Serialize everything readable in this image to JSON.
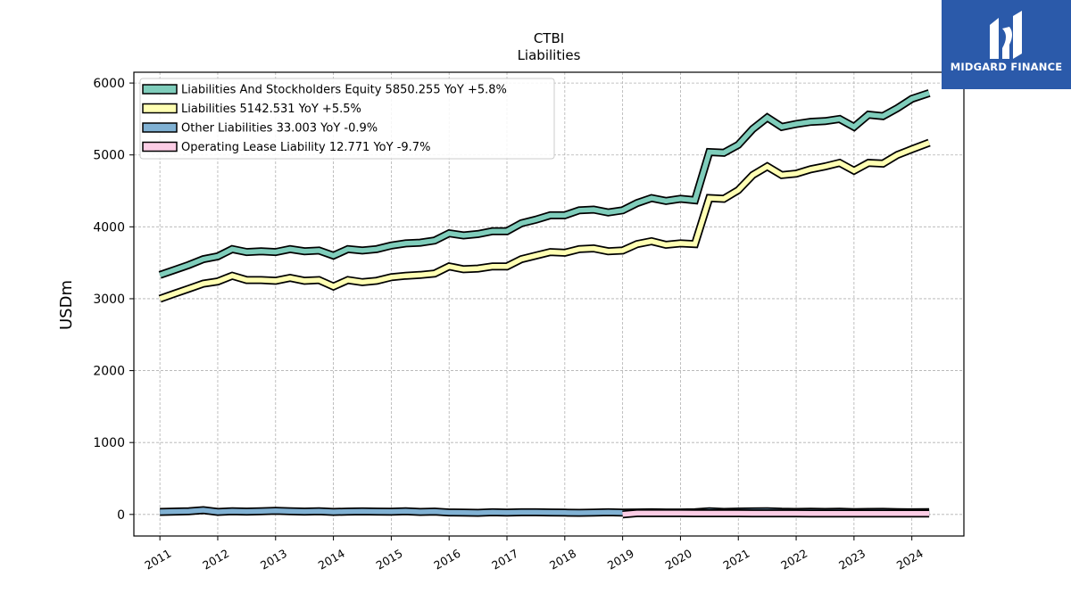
{
  "chart_data": {
    "type": "line",
    "title": "CTBI",
    "subtitle": "Liabilities",
    "xlabel": "",
    "ylabel": "USDm",
    "xlim": [
      2010.55,
      2024.9
    ],
    "ylim": [
      -300,
      6150
    ],
    "yticks": [
      0,
      1000,
      2000,
      3000,
      4000,
      5000,
      6000
    ],
    "xticks": [
      2011,
      2012,
      2013,
      2014,
      2015,
      2016,
      2017,
      2018,
      2019,
      2020,
      2021,
      2022,
      2023,
      2024
    ],
    "grid": true,
    "legend_position": "top-left",
    "series": [
      {
        "name": "Liabilities And Stockholders Equity",
        "legend": "Liabilities And Stockholders Equity  5850.255 YoY +5.8%",
        "color": "#7fcdbb",
        "x": [
          2011.0,
          2011.25,
          2011.5,
          2011.75,
          2012.0,
          2012.25,
          2012.5,
          2012.75,
          2013.0,
          2013.25,
          2013.5,
          2013.75,
          2014.0,
          2014.25,
          2014.5,
          2014.75,
          2015.0,
          2015.25,
          2015.5,
          2015.75,
          2016.0,
          2016.25,
          2016.5,
          2016.75,
          2017.0,
          2017.25,
          2017.5,
          2017.75,
          2018.0,
          2018.25,
          2018.5,
          2018.75,
          2019.0,
          2019.25,
          2019.5,
          2019.75,
          2020.0,
          2020.25,
          2020.5,
          2020.75,
          2021.0,
          2021.25,
          2021.5,
          2021.75,
          2022.0,
          2022.25,
          2022.5,
          2022.75,
          2023.0,
          2023.25,
          2023.5,
          2023.75,
          2024.0,
          2024.3
        ],
        "values": [
          3330,
          3400,
          3470,
          3550,
          3590,
          3690,
          3650,
          3660,
          3650,
          3690,
          3660,
          3670,
          3600,
          3690,
          3670,
          3690,
          3740,
          3770,
          3780,
          3810,
          3910,
          3880,
          3900,
          3940,
          3940,
          4050,
          4100,
          4160,
          4160,
          4230,
          4240,
          4200,
          4230,
          4330,
          4400,
          4360,
          4390,
          4370,
          5040,
          5030,
          5140,
          5360,
          5520,
          5390,
          5430,
          5460,
          5470,
          5500,
          5390,
          5560,
          5540,
          5650,
          5780,
          5860
        ]
      },
      {
        "name": "Liabilities",
        "legend": "Liabilities  5142.531 YoY +5.5%",
        "color": "#ffffb3",
        "x": [
          2011.0,
          2011.25,
          2011.5,
          2011.75,
          2012.0,
          2012.25,
          2012.5,
          2012.75,
          2013.0,
          2013.25,
          2013.5,
          2013.75,
          2014.0,
          2014.25,
          2014.5,
          2014.75,
          2015.0,
          2015.25,
          2015.5,
          2015.75,
          2016.0,
          2016.25,
          2016.5,
          2016.75,
          2017.0,
          2017.25,
          2017.5,
          2017.75,
          2018.0,
          2018.25,
          2018.5,
          2018.75,
          2019.0,
          2019.25,
          2019.5,
          2019.75,
          2020.0,
          2020.25,
          2020.5,
          2020.75,
          2021.0,
          2021.25,
          2021.5,
          2021.75,
          2022.0,
          2022.25,
          2022.5,
          2022.75,
          2023.0,
          2023.25,
          2023.5,
          2023.75,
          2024.0,
          2024.3
        ],
        "values": [
          3000,
          3070,
          3140,
          3210,
          3240,
          3320,
          3260,
          3260,
          3250,
          3290,
          3250,
          3260,
          3170,
          3260,
          3230,
          3250,
          3300,
          3320,
          3330,
          3350,
          3450,
          3410,
          3420,
          3450,
          3450,
          3550,
          3600,
          3650,
          3640,
          3690,
          3700,
          3660,
          3670,
          3760,
          3800,
          3750,
          3770,
          3760,
          4400,
          4390,
          4510,
          4720,
          4840,
          4720,
          4740,
          4800,
          4840,
          4890,
          4780,
          4890,
          4880,
          5000,
          5080,
          5170
        ]
      },
      {
        "name": "Other Liabilities",
        "legend": "Other Liabilities  33.003 YoY -0.9%",
        "color": "#80b1d3",
        "x": [
          2011.0,
          2011.25,
          2011.5,
          2011.75,
          2012.0,
          2012.25,
          2012.5,
          2012.75,
          2013.0,
          2013.25,
          2013.5,
          2013.75,
          2014.0,
          2014.25,
          2014.5,
          2014.75,
          2015.0,
          2015.25,
          2015.5,
          2015.75,
          2016.0,
          2016.25,
          2016.5,
          2016.75,
          2017.0,
          2017.25,
          2017.5,
          2017.75,
          2018.0,
          2018.25,
          2018.5,
          2018.75,
          2019.0,
          2019.25,
          2019.5,
          2019.75,
          2020.0,
          2020.25,
          2020.5,
          2020.75,
          2021.0,
          2021.25,
          2021.5,
          2021.75,
          2022.0,
          2022.25,
          2022.5,
          2022.75,
          2023.0,
          2023.25,
          2023.5,
          2023.75,
          2024.0,
          2024.3
        ],
        "values": [
          35,
          40,
          45,
          60,
          35,
          45,
          40,
          45,
          50,
          45,
          40,
          45,
          35,
          40,
          42,
          40,
          38,
          45,
          35,
          40,
          28,
          25,
          22,
          30,
          25,
          30,
          30,
          28,
          25,
          22,
          25,
          30,
          25,
          28,
          30,
          28,
          28,
          30,
          45,
          35,
          40,
          42,
          45,
          38,
          35,
          38,
          35,
          38,
          32,
          35,
          36,
          32,
          30,
          33
        ]
      },
      {
        "name": "Operating Lease Liability",
        "legend": "Operating Lease Liability  12.771 YoY -9.7%",
        "color": "#fccde5",
        "x": [
          2019.0,
          2019.25,
          2019.5,
          2019.75,
          2020.0,
          2020.25,
          2020.5,
          2020.75,
          2021.0,
          2021.25,
          2021.5,
          2021.75,
          2022.0,
          2022.25,
          2022.5,
          2022.75,
          2023.0,
          2023.25,
          2023.5,
          2023.75,
          2024.0,
          2024.3
        ],
        "values": [
          0,
          17,
          17,
          17,
          17,
          16,
          16,
          16,
          16,
          15,
          15,
          15,
          15,
          14,
          14,
          14,
          14,
          14,
          14,
          13,
          13,
          13
        ]
      }
    ]
  },
  "logo": {
    "text": "MIDGARD FINANCE",
    "background": "#2b5aaa"
  }
}
